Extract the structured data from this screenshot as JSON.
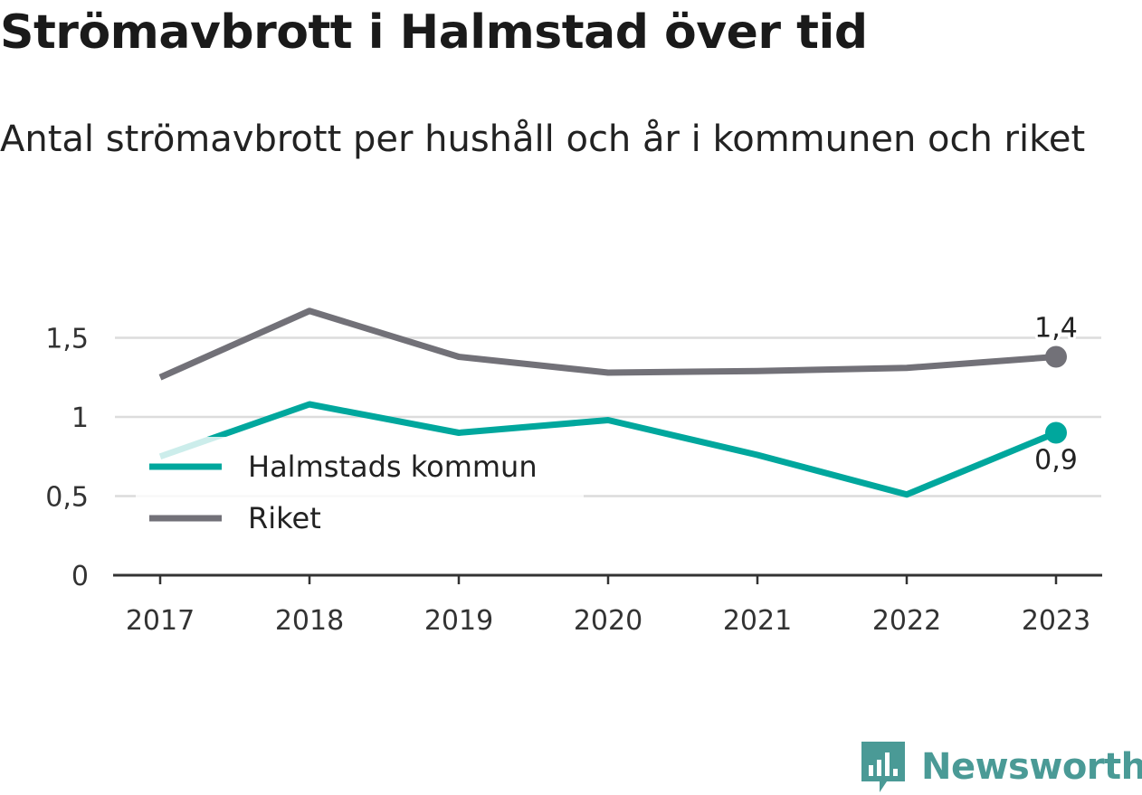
{
  "title": "Strömavbrott i Halmstad över tid",
  "subtitle": "Antal strömavbrott per hushåll och år i kommunen och riket",
  "brand": "Newsworthy",
  "colors": {
    "kommun": "#00a79d",
    "riket": "#727178",
    "grid": "#dcdcdc",
    "axis": "#333333",
    "brand": "#4a9a96"
  },
  "chart_data": {
    "type": "line",
    "x": [
      "2017",
      "2018",
      "2019",
      "2020",
      "2021",
      "2022",
      "2023"
    ],
    "series": [
      {
        "name": "Halmstads kommun",
        "color": "#00a79d",
        "values": [
          0.75,
          1.08,
          0.9,
          0.98,
          0.76,
          0.51,
          0.9
        ],
        "end_label": "0,9"
      },
      {
        "name": "Riket",
        "color": "#727178",
        "values": [
          1.25,
          1.67,
          1.38,
          1.28,
          1.29,
          1.31,
          1.38
        ],
        "end_label": "1,4"
      }
    ],
    "yticks": [
      {
        "value": 0,
        "label": "0"
      },
      {
        "value": 0.5,
        "label": "0,5"
      },
      {
        "value": 1,
        "label": "1"
      },
      {
        "value": 1.5,
        "label": "1,5"
      }
    ],
    "ylim": [
      0,
      1.8
    ],
    "grid": true,
    "legend_position": "left-bottom"
  }
}
